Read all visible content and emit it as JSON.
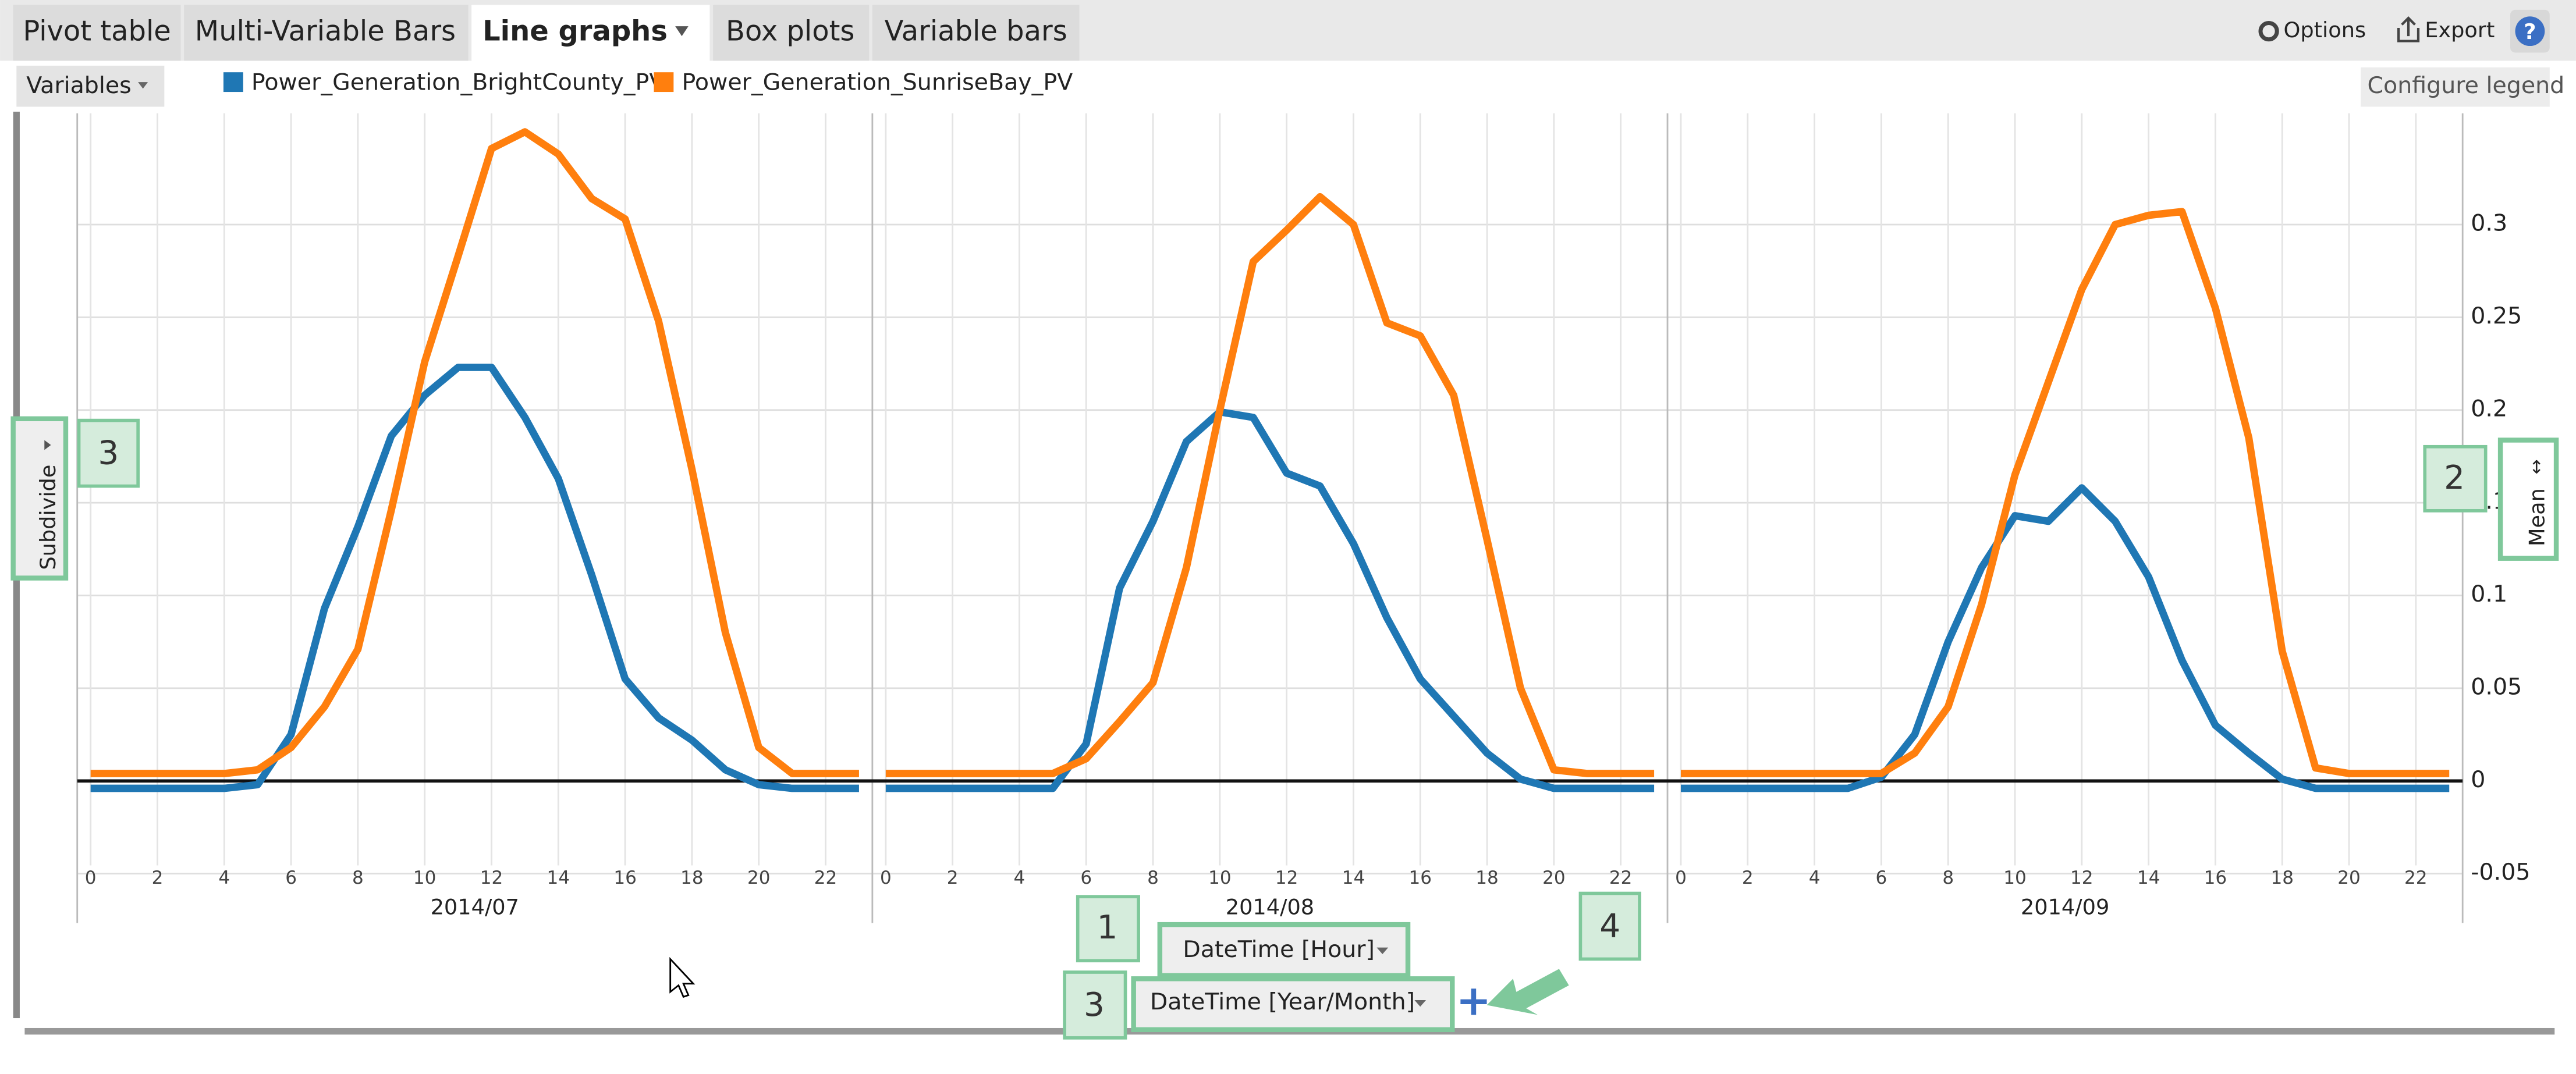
{
  "ui": {
    "tabs": [
      "Pivot table",
      "Multi-Variable Bars",
      "Line graphs",
      "Box plots",
      "Variable bars"
    ],
    "options": "Options",
    "export": "Export",
    "help": "?",
    "variables": "Variables",
    "configure_legend": "Configure legend",
    "subdivide": "Subdivide",
    "mean": "Mean",
    "x_fields": [
      "DateTime [Hour]",
      "DateTime [Year/Month]"
    ],
    "callouts": [
      "3",
      "2",
      "1",
      "3",
      "4"
    ]
  },
  "chart_data": {
    "type": "line",
    "panels": [
      "2014/07",
      "2014/08",
      "2014/09"
    ],
    "x": [
      0,
      1,
      2,
      3,
      4,
      5,
      6,
      7,
      8,
      9,
      10,
      11,
      12,
      13,
      14,
      15,
      16,
      17,
      18,
      19,
      20,
      21,
      22,
      23
    ],
    "xlim": [
      -0.4,
      23.4
    ],
    "xticks": [
      0,
      2,
      4,
      6,
      8,
      10,
      12,
      14,
      16,
      18,
      20,
      22
    ],
    "ylim": [
      -0.05,
      0.36
    ],
    "yticks": [
      -0.05,
      0,
      0.05,
      0.1,
      0.15,
      0.2,
      0.25,
      0.3
    ],
    "grid": true,
    "series": [
      {
        "name": "Power_Generation_BrightCounty_PV",
        "color": "#1f77b4",
        "values": [
          [
            -0.004,
            -0.004,
            -0.004,
            -0.004,
            -0.004,
            -0.002,
            0.025,
            0.093,
            0.137,
            0.186,
            0.208,
            0.223,
            0.223,
            0.196,
            0.163,
            0.111,
            0.055,
            0.034,
            0.022,
            0.006,
            -0.002,
            -0.004,
            -0.004,
            -0.004
          ],
          [
            -0.004,
            -0.004,
            -0.004,
            -0.004,
            -0.004,
            -0.004,
            0.02,
            0.104,
            0.14,
            0.183,
            0.199,
            0.196,
            0.166,
            0.159,
            0.128,
            0.088,
            0.055,
            0.035,
            0.015,
            0.001,
            -0.004,
            -0.004,
            -0.004,
            -0.004
          ],
          [
            -0.004,
            -0.004,
            -0.004,
            -0.004,
            -0.004,
            -0.004,
            0.002,
            0.025,
            0.075,
            0.115,
            0.143,
            0.14,
            0.158,
            0.14,
            0.11,
            0.065,
            0.03,
            0.015,
            0.001,
            -0.004,
            -0.004,
            -0.004,
            -0.004,
            -0.004
          ]
        ]
      },
      {
        "name": "Power_Generation_SunriseBay_PV",
        "color": "#ff7f0e",
        "values": [
          [
            0.004,
            0.004,
            0.004,
            0.004,
            0.004,
            0.006,
            0.018,
            0.04,
            0.071,
            0.146,
            0.226,
            0.283,
            0.341,
            0.35,
            0.338,
            0.314,
            0.303,
            0.248,
            0.168,
            0.08,
            0.018,
            0.004,
            0.004,
            0.004
          ],
          [
            0.004,
            0.004,
            0.004,
            0.004,
            0.004,
            0.004,
            0.012,
            0.032,
            0.053,
            0.115,
            0.2,
            0.28,
            0.297,
            0.315,
            0.3,
            0.247,
            0.24,
            0.208,
            0.13,
            0.05,
            0.006,
            0.004,
            0.004,
            0.004
          ],
          [
            0.004,
            0.004,
            0.004,
            0.004,
            0.004,
            0.004,
            0.004,
            0.015,
            0.04,
            0.095,
            0.165,
            0.215,
            0.265,
            0.3,
            0.305,
            0.307,
            0.255,
            0.185,
            0.07,
            0.007,
            0.004,
            0.004,
            0.004,
            0.004
          ]
        ]
      }
    ]
  }
}
